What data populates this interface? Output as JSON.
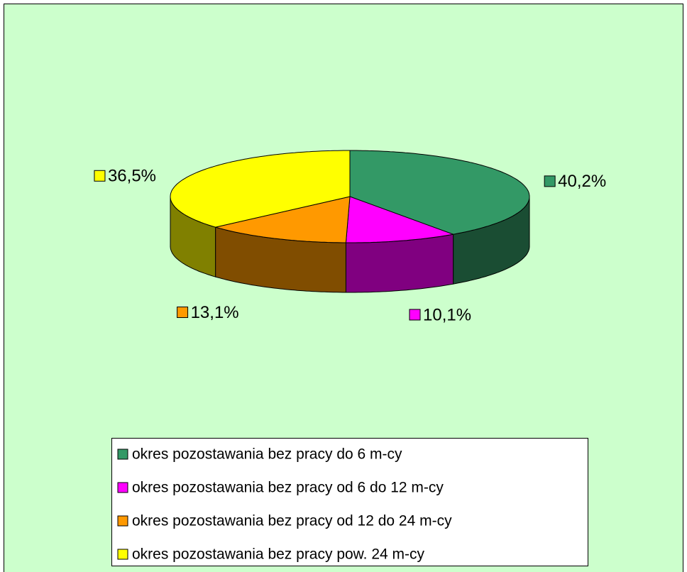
{
  "chart_data": {
    "type": "pie3d",
    "categories": [
      "okres pozostawania bez pracy do 6 m-cy",
      "okres pozostawania bez pracy od 6 do 12 m-cy",
      "okres pozostawania bez pracy od 12 do 24 m-cy",
      "okres pozostawania bez pracy pow. 24 m-cy"
    ],
    "values": [
      40.2,
      10.1,
      13.1,
      36.5
    ],
    "value_labels": [
      "40,2%",
      "10,1%",
      "13,1%",
      "36,5%"
    ],
    "colors": [
      "#339966",
      "#ff00ff",
      "#ff9900",
      "#ffff00"
    ],
    "legend": "bottom"
  }
}
